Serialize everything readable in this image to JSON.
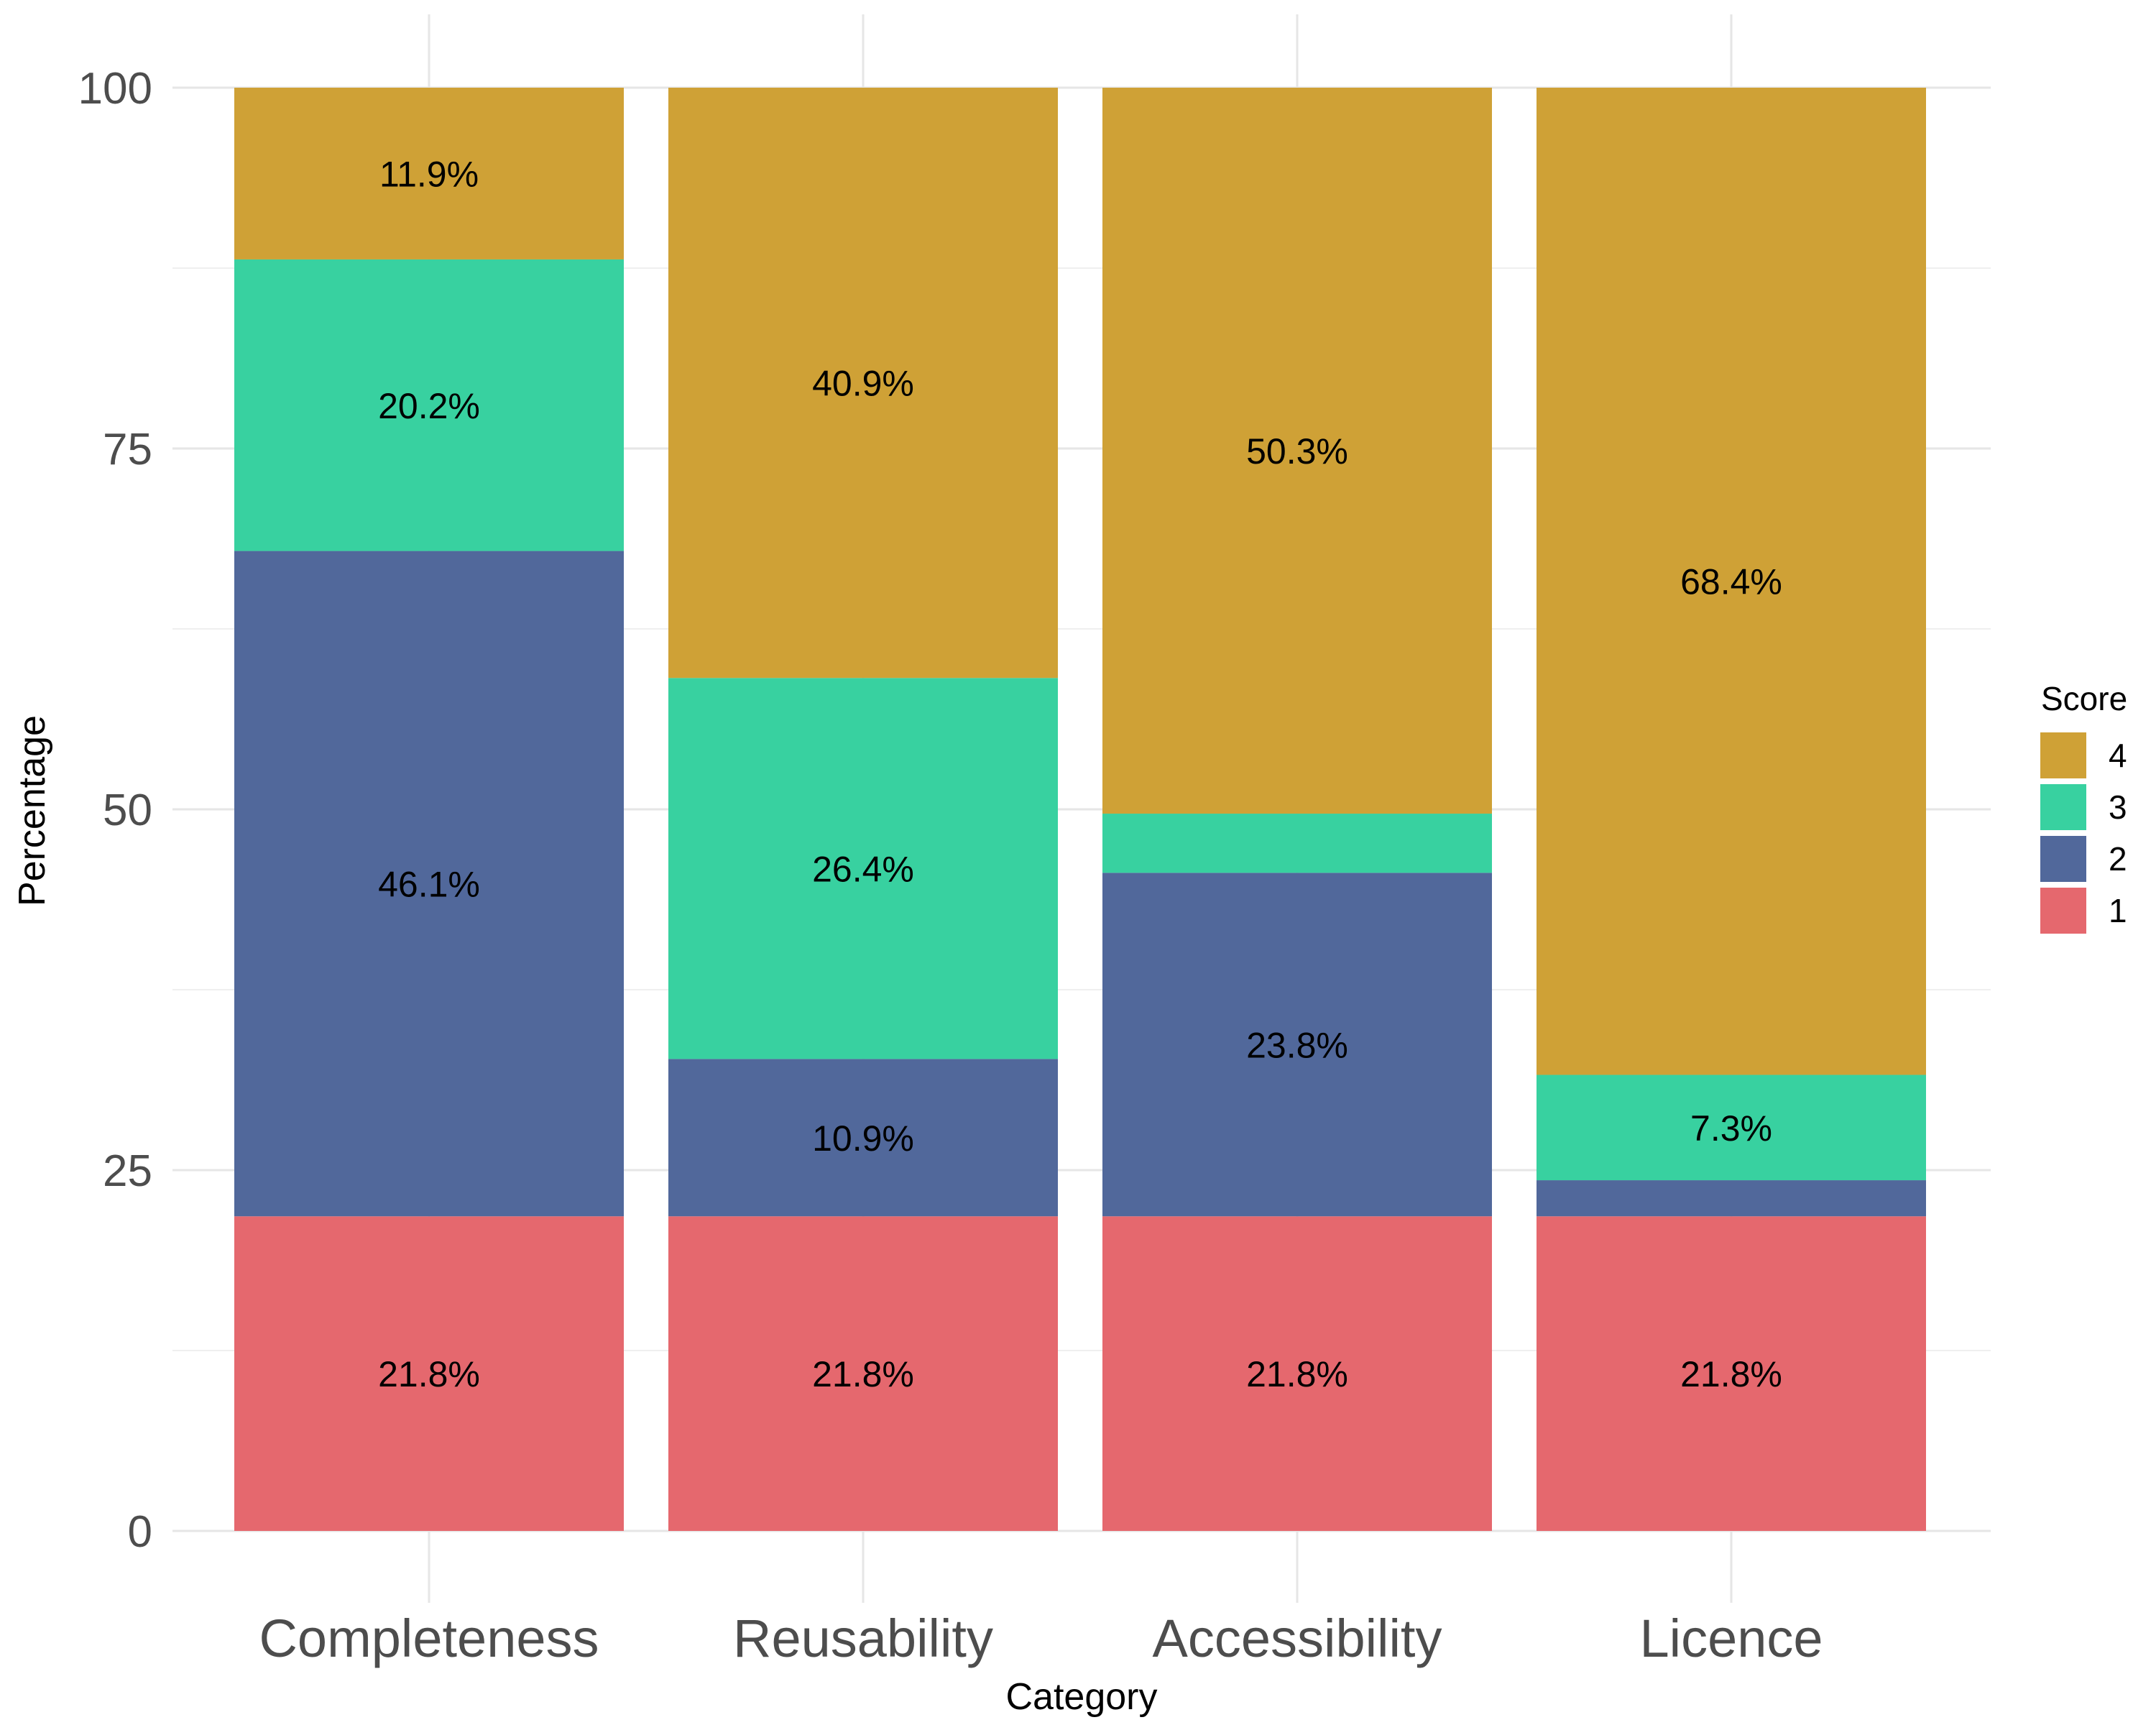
{
  "chart_data": {
    "type": "bar",
    "stacked": true,
    "categories": [
      "Completeness",
      "Reusability",
      "Accessibility",
      "Licence"
    ],
    "series": [
      {
        "name": "1",
        "color": "#e5686e",
        "values": [
          21.8,
          21.8,
          21.8,
          21.8
        ],
        "labels": [
          "21.8%",
          "21.8%",
          "21.8%",
          "21.8%"
        ]
      },
      {
        "name": "2",
        "color": "#51689b",
        "values": [
          46.1,
          10.9,
          23.8,
          2.5
        ],
        "labels": [
          "46.1%",
          "10.9%",
          "23.8%",
          ""
        ]
      },
      {
        "name": "3",
        "color": "#38d1a0",
        "values": [
          20.2,
          26.4,
          4.1,
          7.3
        ],
        "labels": [
          "20.2%",
          "26.4%",
          "",
          "7.3%"
        ]
      },
      {
        "name": "4",
        "color": "#cfa136",
        "values": [
          11.9,
          40.9,
          50.3,
          68.4
        ],
        "labels": [
          "11.9%",
          "40.9%",
          "50.3%",
          "68.4%"
        ]
      }
    ],
    "xlabel": "Category",
    "ylabel": "Percentage",
    "ylim": [
      0,
      100
    ],
    "yticks": [
      "0",
      "25",
      "50",
      "75",
      "100"
    ],
    "grid": true,
    "legend": {
      "title": "Score",
      "position": "right",
      "order": [
        "4",
        "3",
        "2",
        "1"
      ]
    }
  }
}
